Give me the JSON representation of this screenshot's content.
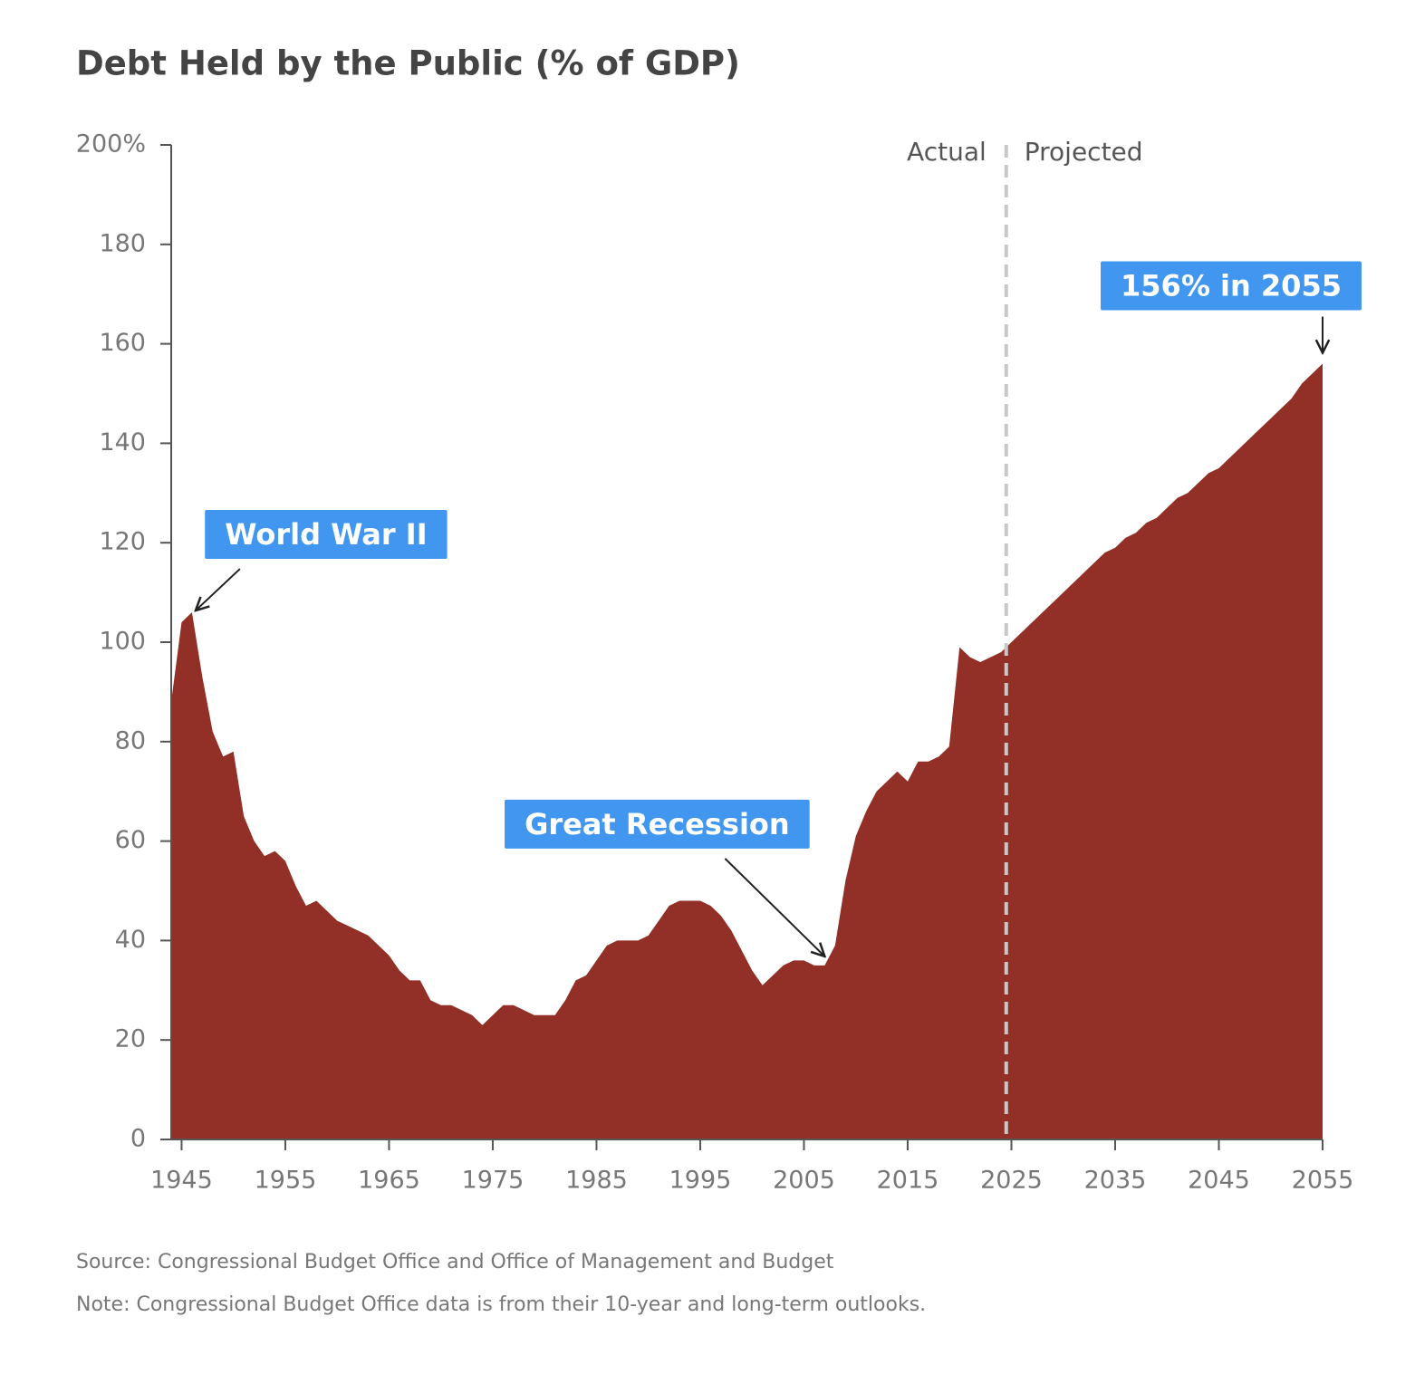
{
  "chart_data": {
    "type": "area",
    "title": "Debt Held by the Public (% of GDP)",
    "x": [
      1944,
      1945,
      1946,
      1947,
      1948,
      1949,
      1950,
      1951,
      1952,
      1953,
      1954,
      1955,
      1956,
      1957,
      1958,
      1959,
      1960,
      1961,
      1962,
      1963,
      1964,
      1965,
      1966,
      1967,
      1968,
      1969,
      1970,
      1971,
      1972,
      1973,
      1974,
      1975,
      1976,
      1977,
      1978,
      1979,
      1980,
      1981,
      1982,
      1983,
      1984,
      1985,
      1986,
      1987,
      1988,
      1989,
      1990,
      1991,
      1992,
      1993,
      1994,
      1995,
      1996,
      1997,
      1998,
      1999,
      2000,
      2001,
      2002,
      2003,
      2004,
      2005,
      2006,
      2007,
      2008,
      2009,
      2010,
      2011,
      2012,
      2013,
      2014,
      2015,
      2016,
      2017,
      2018,
      2019,
      2020,
      2021,
      2022,
      2023,
      2024,
      2025,
      2026,
      2027,
      2028,
      2029,
      2030,
      2031,
      2032,
      2033,
      2034,
      2035,
      2036,
      2037,
      2038,
      2039,
      2040,
      2041,
      2042,
      2043,
      2044,
      2045,
      2046,
      2047,
      2048,
      2049,
      2050,
      2051,
      2052,
      2053,
      2054,
      2055
    ],
    "values": [
      88,
      104,
      106,
      93,
      82,
      77,
      78,
      65,
      60,
      57,
      58,
      56,
      51,
      47,
      48,
      46,
      44,
      43,
      42,
      41,
      39,
      37,
      34,
      32,
      32,
      28,
      27,
      27,
      26,
      25,
      23,
      25,
      27,
      27,
      26,
      25,
      25,
      25,
      28,
      32,
      33,
      36,
      39,
      40,
      40,
      40,
      41,
      44,
      47,
      48,
      48,
      48,
      47,
      45,
      42,
      38,
      34,
      31,
      33,
      35,
      36,
      36,
      35,
      35,
      39,
      52,
      61,
      66,
      70,
      72,
      74,
      72,
      76,
      76,
      77,
      79,
      99,
      97,
      96,
      97,
      98,
      100,
      102,
      104,
      106,
      108,
      110,
      112,
      114,
      116,
      118,
      119,
      121,
      122,
      124,
      125,
      127,
      129,
      130,
      132,
      134,
      135,
      137,
      139,
      141,
      143,
      145,
      147,
      149,
      152,
      154,
      156
    ],
    "color": "#922f27",
    "xlim": [
      1944,
      2055
    ],
    "xticks": [
      1945,
      1955,
      1965,
      1975,
      1985,
      1995,
      2005,
      2015,
      2025,
      2035,
      2045,
      2055
    ],
    "ylim": [
      0,
      200
    ],
    "yticks": [
      0,
      20,
      40,
      60,
      80,
      100,
      120,
      140,
      160,
      180,
      {
        "value": 200,
        "label": "200%"
      }
    ],
    "grid": false,
    "divider_x": 2024.5,
    "divider_labels": [
      "Actual",
      "Projected"
    ],
    "annotations": [
      {
        "text": "World War II",
        "x": 1946
      },
      {
        "text": "Great Recession",
        "x": 2007
      },
      {
        "text": "156% in 2055",
        "x": 2055
      }
    ],
    "annotation_color": "#4196f0",
    "source": "Source: Congressional Budget Office and Office of Management and Budget",
    "note": "Note: Congressional Budget Office data is from their 10-year and long-term outlooks."
  }
}
